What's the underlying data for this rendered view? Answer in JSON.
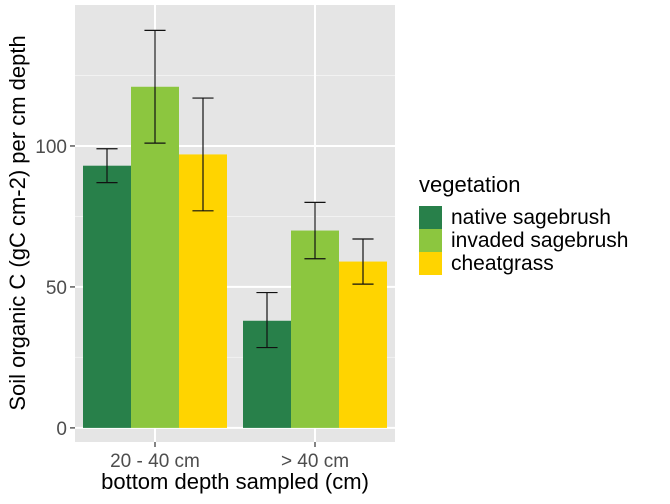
{
  "chart_data": {
    "type": "bar",
    "xlabel": "bottom depth sampled (cm)",
    "ylabel": "Soil organic C (gC cm-2) per cm depth",
    "categories": [
      "20 - 40 cm",
      "> 40 cm"
    ],
    "yticks": [
      0,
      50,
      100
    ],
    "ylim": [
      -5,
      150
    ],
    "grid": true,
    "legend": {
      "title": "vegetation",
      "position": "right"
    },
    "series": [
      {
        "name": "native sagebrush",
        "color": "#28804a",
        "values": [
          93,
          38
        ],
        "error_low": [
          87,
          28.5
        ],
        "error_high": [
          99,
          48
        ]
      },
      {
        "name": "invaded sagebrush",
        "color": "#8cc63f",
        "values": [
          121,
          70
        ],
        "error_low": [
          101,
          60
        ],
        "error_high": [
          141,
          80
        ]
      },
      {
        "name": "cheatgrass",
        "color": "#ffd400",
        "values": [
          97,
          59
        ],
        "error_low": [
          77,
          51
        ],
        "error_high": [
          117,
          67
        ]
      }
    ]
  }
}
